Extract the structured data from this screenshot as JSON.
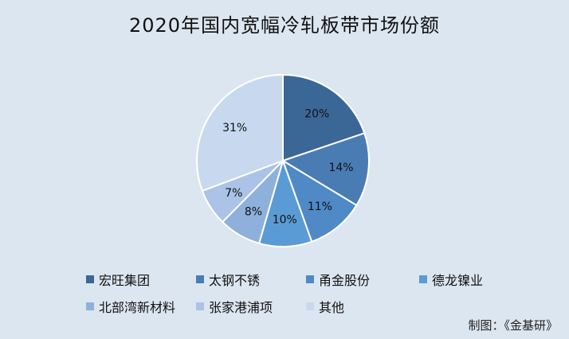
{
  "chart_data": {
    "type": "pie",
    "title": "2020年国内宽幅冷轧板带市场份额",
    "categories": [
      "宏旺集团",
      "太钢不锈",
      "甬金股份",
      "德龙镍业",
      "北部湾新材料",
      "张家港浦项",
      "其他"
    ],
    "values": [
      20,
      14,
      11,
      10,
      8,
      7,
      31
    ],
    "value_labels": [
      "20%",
      "14%",
      "11%",
      "10%",
      "8%",
      "7%",
      "31%"
    ],
    "colors": [
      "#3b6797",
      "#4a7cb4",
      "#4f89c6",
      "#5b9bd5",
      "#8eb1db",
      "#aac3e6",
      "#c8d8ee"
    ],
    "legend_placement": "bottom"
  },
  "source": "制图：《金基研》"
}
